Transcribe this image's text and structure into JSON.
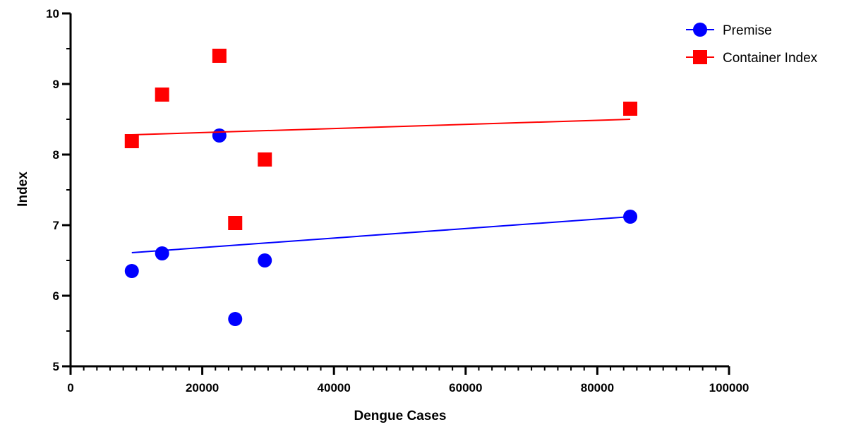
{
  "chart_data": {
    "type": "scatter",
    "title": "",
    "xlabel": "Dengue Cases",
    "ylabel": "Index",
    "xlim": [
      0,
      100000
    ],
    "ylim": [
      5,
      10
    ],
    "x_ticks": [
      0,
      20000,
      40000,
      60000,
      80000,
      100000
    ],
    "x_tick_labels": [
      "0",
      "20000",
      "40000",
      "60000",
      "80000",
      "100000"
    ],
    "y_ticks": [
      5,
      6,
      7,
      8,
      9,
      10
    ],
    "y_tick_labels": [
      "5",
      "6",
      "7",
      "8",
      "9",
      "10"
    ],
    "x_minor_step": 2000,
    "y_minor_step": 0.5,
    "grid": false,
    "legend_position": "top-right",
    "series": [
      {
        "name": "Premise",
        "marker": "circle",
        "color": "#0000ff",
        "points": [
          {
            "x": 9300,
            "y": 6.35
          },
          {
            "x": 13900,
            "y": 6.6
          },
          {
            "x": 22600,
            "y": 8.27
          },
          {
            "x": 25000,
            "y": 5.67
          },
          {
            "x": 29500,
            "y": 6.5
          },
          {
            "x": 85000,
            "y": 7.12
          }
        ],
        "trendline": {
          "x": [
            9300,
            85000
          ],
          "y": [
            6.61,
            7.12
          ]
        }
      },
      {
        "name": "Container Index",
        "marker": "square",
        "color": "#ff0000",
        "points": [
          {
            "x": 9300,
            "y": 8.19
          },
          {
            "x": 13900,
            "y": 8.85
          },
          {
            "x": 22600,
            "y": 9.4
          },
          {
            "x": 25000,
            "y": 7.03
          },
          {
            "x": 29500,
            "y": 7.93
          },
          {
            "x": 85000,
            "y": 8.65
          }
        ],
        "trendline": {
          "x": [
            9300,
            85000
          ],
          "y": [
            8.28,
            8.5
          ]
        }
      }
    ]
  }
}
